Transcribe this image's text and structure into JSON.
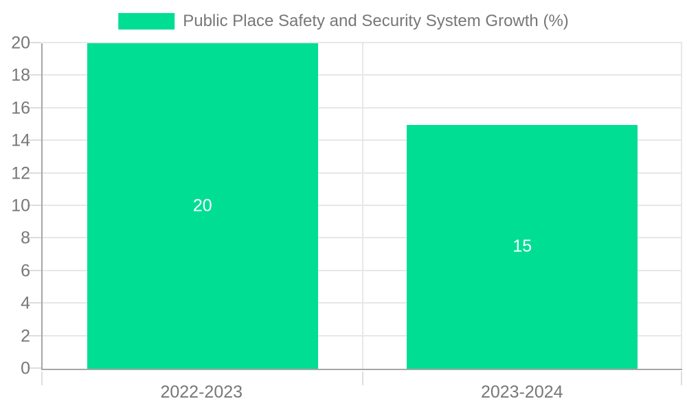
{
  "chart_data": {
    "type": "bar",
    "title": "Public Place Safety and Security System Growth (%)",
    "categories": [
      "2022-2023",
      "2023-2024"
    ],
    "values": [
      20,
      15
    ],
    "bar_value_labels": [
      "20",
      "15"
    ],
    "xlabel": "",
    "ylabel": "",
    "ylim": [
      0,
      20
    ],
    "ytick_step": 2,
    "ytick_labels": [
      "0",
      "2",
      "4",
      "6",
      "8",
      "10",
      "12",
      "14",
      "16",
      "18",
      "20"
    ],
    "grid": true,
    "legend": {
      "position": "top-center",
      "entries": [
        "Public Place Safety and Security System Growth (%)"
      ]
    }
  },
  "colors": {
    "bar": "#00DE94",
    "bar_label_text": "#FFFFFF",
    "axis_text": "#777777",
    "legend_text": "#777777",
    "gridline": "#E7E7E7",
    "axis_line": "#A6A6A6",
    "tick": "#DDDDDD",
    "background": "#FFFFFF"
  }
}
